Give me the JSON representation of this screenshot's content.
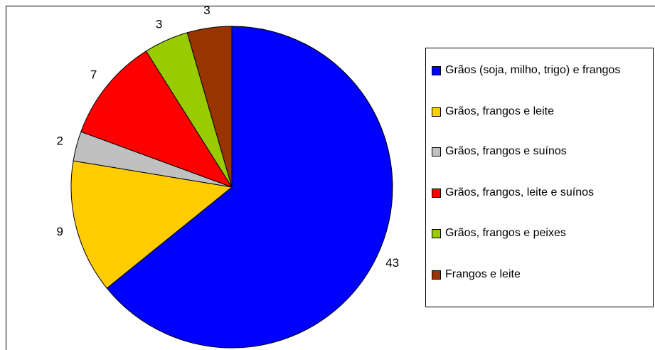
{
  "chart_data": {
    "type": "pie",
    "categories": [
      "Grãos (soja, milho, trigo) e frangos",
      "Grãos, frangos e leite",
      "Grãos, frangos e suínos",
      "Grãos, frangos, leite e suínos",
      "Grãos, frangos e peixes",
      "Frangos e leite"
    ],
    "values": [
      43,
      9,
      2,
      7,
      3,
      3
    ],
    "colors": [
      "#0000ff",
      "#ffcc00",
      "#c0c0c0",
      "#ff0000",
      "#99cc00",
      "#993300"
    ],
    "legend": "right"
  }
}
